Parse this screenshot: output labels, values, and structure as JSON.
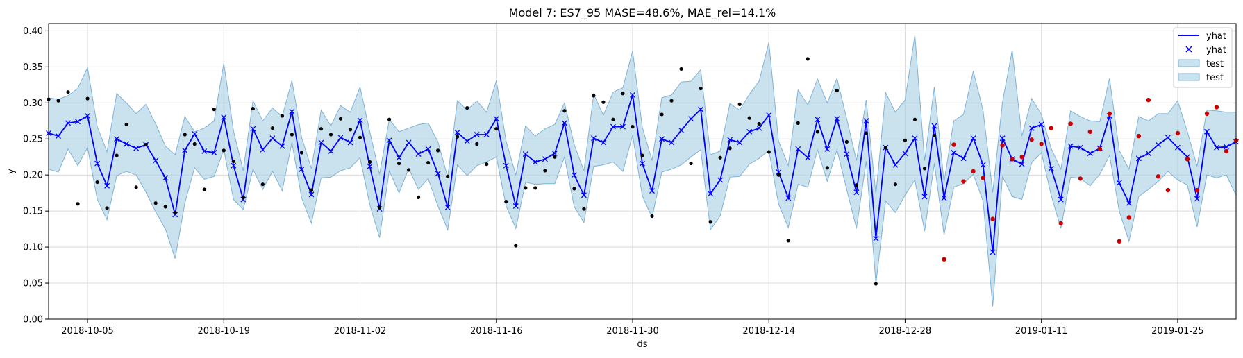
{
  "chart_data": {
    "type": "line",
    "title": "Model 7: ES7_95 MASE=48.6%, MAE_rel=14.1%",
    "xlabel": "ds",
    "ylabel": "y",
    "xlim": [
      "2018-10-01",
      "2019-01-31"
    ],
    "ylim": [
      0.0,
      0.41
    ],
    "x_ticks": [
      "2018-10-05",
      "2018-10-19",
      "2018-11-02",
      "2018-11-16",
      "2018-11-30",
      "2018-12-14",
      "2018-12-28",
      "2019-01-11",
      "2019-01-25"
    ],
    "y_ticks": [
      "0.00",
      "0.05",
      "0.10",
      "0.15",
      "0.20",
      "0.25",
      "0.30",
      "0.35",
      "0.40"
    ],
    "grid": true,
    "legend_position": "top-right",
    "legend": [
      {
        "label": "yhat",
        "kind": "line"
      },
      {
        "label": "yhat",
        "kind": "marker"
      },
      {
        "label": "test",
        "kind": "band"
      },
      {
        "label": "test",
        "kind": "band"
      }
    ],
    "colors": {
      "yhat": "#0000ff",
      "band_fill": "#a6cde2",
      "band_edge": "#7fb2d6",
      "train_points": "#000000",
      "test_points": "#cc0000",
      "grid": "#d9d9d9"
    },
    "series": [
      {
        "name": "yhat",
        "x_start": "2018-10-01",
        "y": [
          0.258,
          0.254,
          0.272,
          0.274,
          0.282,
          0.216,
          0.185,
          0.25,
          0.243,
          0.237,
          0.242,
          0.22,
          0.196,
          0.145,
          0.234,
          0.257,
          0.233,
          0.231,
          0.28,
          0.213,
          0.166,
          0.264,
          0.235,
          0.251,
          0.24,
          0.288,
          0.208,
          0.173,
          0.245,
          0.233,
          0.252,
          0.245,
          0.276,
          0.212,
          0.153,
          0.248,
          0.224,
          0.245,
          0.229,
          0.236,
          0.202,
          0.155,
          0.259,
          0.247,
          0.256,
          0.256,
          0.278,
          0.213,
          0.157,
          0.229,
          0.218,
          0.222,
          0.23,
          0.272,
          0.2,
          0.172,
          0.251,
          0.245,
          0.267,
          0.267,
          0.311,
          0.216,
          0.178,
          0.25,
          0.245,
          0.262,
          0.278,
          0.291,
          0.174,
          0.193,
          0.249,
          0.245,
          0.26,
          0.265,
          0.283,
          0.204,
          0.168,
          0.236,
          0.224,
          0.277,
          0.236,
          0.278,
          0.229,
          0.176,
          0.275,
          0.112,
          0.238,
          0.214,
          0.23,
          0.251,
          0.17,
          0.268,
          0.168,
          0.231,
          0.223,
          0.251,
          0.214,
          0.093,
          0.251,
          0.222,
          0.215,
          0.265,
          0.27,
          0.209,
          0.166,
          0.24,
          0.238,
          0.23,
          0.237,
          0.282,
          0.189,
          0.161,
          0.223,
          0.23,
          0.242,
          0.252,
          0.238,
          0.225,
          0.167,
          0.26,
          0.238,
          0.239,
          0.246
        ]
      },
      {
        "name": "test",
        "x_start": "2018-10-01",
        "lower": [
          0.208,
          0.204,
          0.236,
          0.213,
          0.238,
          0.166,
          0.138,
          0.199,
          0.205,
          0.2,
          0.176,
          0.149,
          0.125,
          0.084,
          0.161,
          0.21,
          0.194,
          0.198,
          0.235,
          0.166,
          0.152,
          0.208,
          0.18,
          0.205,
          0.178,
          0.245,
          0.168,
          0.133,
          0.196,
          0.197,
          0.206,
          0.21,
          0.224,
          0.159,
          0.113,
          0.206,
          0.175,
          0.209,
          0.18,
          0.195,
          0.157,
          0.124,
          0.214,
          0.199,
          0.213,
          0.218,
          0.225,
          0.157,
          0.126,
          0.19,
          0.187,
          0.188,
          0.188,
          0.225,
          0.156,
          0.134,
          0.212,
          0.214,
          0.218,
          0.205,
          0.255,
          0.171,
          0.141,
          0.204,
          0.208,
          0.214,
          0.225,
          0.235,
          0.124,
          0.143,
          0.197,
          0.198,
          0.215,
          0.223,
          0.234,
          0.16,
          0.127,
          0.187,
          0.183,
          0.235,
          0.191,
          0.235,
          0.18,
          0.126,
          0.219,
          0.049,
          0.164,
          0.148,
          0.172,
          0.193,
          0.122,
          0.216,
          0.117,
          0.183,
          0.188,
          0.201,
          0.164,
          0.018,
          0.198,
          0.17,
          0.166,
          0.217,
          0.231,
          0.172,
          0.126,
          0.197,
          0.195,
          0.185,
          0.201,
          0.227,
          0.15,
          0.108,
          0.17,
          0.18,
          0.191,
          0.205,
          0.193,
          0.186,
          0.128,
          0.2,
          0.196,
          0.2,
          0.172
        ],
        "upper": [
          0.307,
          0.305,
          0.31,
          0.32,
          0.349,
          0.267,
          0.232,
          0.313,
          0.3,
          0.285,
          0.298,
          0.271,
          0.24,
          0.228,
          0.281,
          0.26,
          0.265,
          0.275,
          0.355,
          0.261,
          0.206,
          0.303,
          0.275,
          0.293,
          0.281,
          0.331,
          0.252,
          0.209,
          0.29,
          0.268,
          0.296,
          0.287,
          0.322,
          0.26,
          0.201,
          0.277,
          0.26,
          0.265,
          0.27,
          0.272,
          0.246,
          0.197,
          0.303,
          0.29,
          0.303,
          0.287,
          0.331,
          0.247,
          0.2,
          0.268,
          0.254,
          0.264,
          0.27,
          0.3,
          0.242,
          0.206,
          0.312,
          0.283,
          0.315,
          0.321,
          0.372,
          0.266,
          0.22,
          0.307,
          0.311,
          0.329,
          0.33,
          0.346,
          0.228,
          0.233,
          0.299,
          0.29,
          0.312,
          0.33,
          0.384,
          0.247,
          0.213,
          0.318,
          0.297,
          0.333,
          0.3,
          0.334,
          0.278,
          0.22,
          0.304,
          0.173,
          0.314,
          0.287,
          0.304,
          0.394,
          0.22,
          0.322,
          0.19,
          0.275,
          0.284,
          0.344,
          0.29,
          0.176,
          0.301,
          0.373,
          0.254,
          0.306,
          0.284,
          0.237,
          0.208,
          0.289,
          0.281,
          0.275,
          0.274,
          0.334,
          0.234,
          0.208,
          0.281,
          0.275,
          0.285,
          0.285,
          0.303,
          0.26,
          0.212,
          0.29,
          0.289,
          0.287,
          0.287
        ]
      },
      {
        "name": "train",
        "points": [
          [
            "2018-10-01",
            0.305
          ],
          [
            "2018-10-02",
            0.303
          ],
          [
            "2018-10-03",
            0.315
          ],
          [
            "2018-10-04",
            0.16
          ],
          [
            "2018-10-05",
            0.306
          ],
          [
            "2018-10-06",
            0.19
          ],
          [
            "2018-10-07",
            0.154
          ],
          [
            "2018-10-08",
            0.227
          ],
          [
            "2018-10-09",
            0.27
          ],
          [
            "2018-10-10",
            0.183
          ],
          [
            "2018-10-11",
            0.242
          ],
          [
            "2018-10-12",
            0.161
          ],
          [
            "2018-10-13",
            0.156
          ],
          [
            "2018-10-14",
            0.148
          ],
          [
            "2018-10-15",
            0.256
          ],
          [
            "2018-10-16",
            0.243
          ],
          [
            "2018-10-17",
            0.18
          ],
          [
            "2018-10-18",
            0.291
          ],
          [
            "2018-10-19",
            0.234
          ],
          [
            "2018-10-20",
            0.219
          ],
          [
            "2018-10-21",
            0.169
          ],
          [
            "2018-10-22",
            0.292
          ],
          [
            "2018-10-23",
            0.187
          ],
          [
            "2018-10-24",
            0.265
          ],
          [
            "2018-10-25",
            0.282
          ],
          [
            "2018-10-26",
            0.256
          ],
          [
            "2018-10-27",
            0.231
          ],
          [
            "2018-10-28",
            0.179
          ],
          [
            "2018-10-29",
            0.264
          ],
          [
            "2018-10-30",
            0.256
          ],
          [
            "2018-10-31",
            0.278
          ],
          [
            "2018-11-01",
            0.263
          ],
          [
            "2018-11-02",
            0.252
          ],
          [
            "2018-11-03",
            0.218
          ],
          [
            "2018-11-04",
            0.155
          ],
          [
            "2018-11-05",
            0.277
          ],
          [
            "2018-11-06",
            0.216
          ],
          [
            "2018-11-07",
            0.207
          ],
          [
            "2018-11-08",
            0.169
          ],
          [
            "2018-11-09",
            0.217
          ],
          [
            "2018-11-10",
            0.234
          ],
          [
            "2018-11-11",
            0.198
          ],
          [
            "2018-11-12",
            0.253
          ],
          [
            "2018-11-13",
            0.293
          ],
          [
            "2018-11-14",
            0.243
          ],
          [
            "2018-11-15",
            0.215
          ],
          [
            "2018-11-16",
            0.264
          ],
          [
            "2018-11-17",
            0.163
          ],
          [
            "2018-11-18",
            0.102
          ],
          [
            "2018-11-19",
            0.182
          ],
          [
            "2018-11-20",
            0.182
          ],
          [
            "2018-11-21",
            0.206
          ],
          [
            "2018-11-22",
            0.225
          ],
          [
            "2018-11-23",
            0.289
          ],
          [
            "2018-11-24",
            0.181
          ],
          [
            "2018-11-25",
            0.153
          ],
          [
            "2018-11-26",
            0.31
          ],
          [
            "2018-11-27",
            0.301
          ],
          [
            "2018-11-28",
            0.277
          ],
          [
            "2018-11-29",
            0.313
          ],
          [
            "2018-11-30",
            0.267
          ],
          [
            "2018-12-01",
            0.227
          ],
          [
            "2018-12-02",
            0.143
          ],
          [
            "2018-12-03",
            0.284
          ],
          [
            "2018-12-04",
            0.303
          ],
          [
            "2018-12-05",
            0.347
          ],
          [
            "2018-12-06",
            0.216
          ],
          [
            "2018-12-07",
            0.32
          ],
          [
            "2018-12-08",
            0.135
          ],
          [
            "2018-12-09",
            0.224
          ],
          [
            "2018-12-10",
            0.237
          ],
          [
            "2018-12-11",
            0.298
          ],
          [
            "2018-12-12",
            0.279
          ],
          [
            "2018-12-13",
            0.271
          ],
          [
            "2018-12-14",
            0.232
          ],
          [
            "2018-12-15",
            0.2
          ],
          [
            "2018-12-16",
            0.109
          ],
          [
            "2018-12-17",
            0.272
          ],
          [
            "2018-12-18",
            0.361
          ],
          [
            "2018-12-19",
            0.26
          ],
          [
            "2018-12-20",
            0.21
          ],
          [
            "2018-12-21",
            0.317
          ],
          [
            "2018-12-22",
            0.246
          ],
          [
            "2018-12-23",
            0.186
          ],
          [
            "2018-12-24",
            0.258
          ],
          [
            "2018-12-25",
            0.049
          ],
          [
            "2018-12-26",
            0.238
          ],
          [
            "2018-12-27",
            0.187
          ],
          [
            "2018-12-28",
            0.248
          ],
          [
            "2018-12-29",
            0.277
          ],
          [
            "2018-12-30",
            0.209
          ],
          [
            "2018-12-31",
            0.255
          ]
        ]
      },
      {
        "name": "test_actual",
        "points": [
          [
            "2019-01-01",
            0.083
          ],
          [
            "2019-01-02",
            0.242
          ],
          [
            "2019-01-03",
            0.191
          ],
          [
            "2019-01-04",
            0.205
          ],
          [
            "2019-01-05",
            0.196
          ],
          [
            "2019-01-06",
            0.139
          ],
          [
            "2019-01-07",
            0.241
          ],
          [
            "2019-01-08",
            0.222
          ],
          [
            "2019-01-09",
            0.225
          ],
          [
            "2019-01-10",
            0.249
          ],
          [
            "2019-01-11",
            0.243
          ],
          [
            "2019-01-12",
            0.265
          ],
          [
            "2019-01-13",
            0.133
          ],
          [
            "2019-01-14",
            0.271
          ],
          [
            "2019-01-15",
            0.195
          ],
          [
            "2019-01-16",
            0.26
          ],
          [
            "2019-01-17",
            0.236
          ],
          [
            "2019-01-18",
            0.285
          ],
          [
            "2019-01-19",
            0.108
          ],
          [
            "2019-01-20",
            0.141
          ],
          [
            "2019-01-21",
            0.254
          ],
          [
            "2019-01-22",
            0.304
          ],
          [
            "2019-01-23",
            0.198
          ],
          [
            "2019-01-24",
            0.179
          ],
          [
            "2019-01-25",
            0.258
          ],
          [
            "2019-01-26",
            0.222
          ],
          [
            "2019-01-27",
            0.179
          ],
          [
            "2019-01-28",
            0.285
          ],
          [
            "2019-01-29",
            0.294
          ],
          [
            "2019-01-30",
            0.233
          ],
          [
            "2019-01-31",
            0.248
          ]
        ]
      }
    ]
  }
}
